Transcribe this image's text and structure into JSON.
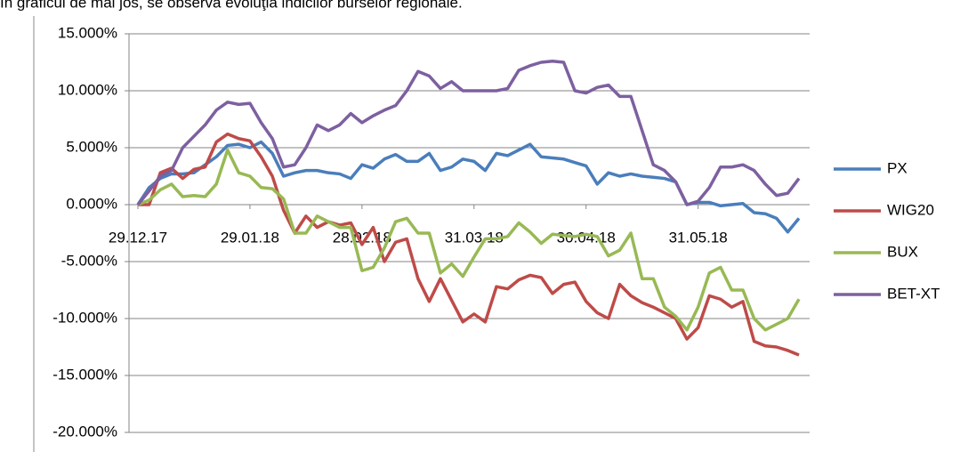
{
  "caption": "În graficul de mai jos, se observă evoluţia indicilor burselor regionale.",
  "chart_data": {
    "type": "line",
    "categories": [
      "29.12.17",
      null,
      null,
      null,
      null,
      null,
      null,
      null,
      null,
      null,
      "29.01.18",
      null,
      null,
      null,
      null,
      null,
      null,
      null,
      null,
      null,
      "28.02.18",
      null,
      null,
      null,
      null,
      null,
      null,
      null,
      null,
      null,
      "31.03.18",
      null,
      null,
      null,
      null,
      null,
      null,
      null,
      null,
      null,
      "30.04.18",
      null,
      null,
      null,
      null,
      null,
      null,
      null,
      null,
      null,
      "31.05.18",
      null,
      null,
      null,
      null,
      null,
      null,
      null,
      null,
      null
    ],
    "series": [
      {
        "name": "PX",
        "color": "#4a7ebb",
        "values": [
          0,
          1.5,
          2.3,
          2.7,
          2.7,
          2.8,
          3.5,
          4.2,
          5.2,
          5.3,
          5.0,
          5.5,
          4.5,
          2.5,
          2.8,
          3.0,
          3.0,
          2.8,
          2.7,
          2.3,
          3.5,
          3.2,
          4.0,
          4.4,
          3.8,
          3.8,
          4.5,
          3.0,
          3.3,
          4.0,
          3.8,
          3.0,
          4.5,
          4.3,
          4.8,
          5.3,
          4.2,
          4.1,
          4.0,
          3.7,
          3.4,
          1.8,
          2.8,
          2.5,
          2.7,
          2.5,
          2.4,
          2.3,
          2.0,
          0.0,
          0.2,
          0.2,
          -0.1,
          0.0,
          0.1,
          -0.7,
          -0.8,
          -1.2,
          -2.4,
          -1.2
        ]
      },
      {
        "name": "WIG20",
        "color": "#be4b48",
        "values": [
          0,
          0.0,
          2.8,
          3.2,
          2.3,
          3.1,
          3.3,
          5.5,
          6.2,
          5.8,
          5.6,
          4.2,
          2.5,
          -0.5,
          -2.5,
          -1.0,
          -2.0,
          -1.5,
          -1.8,
          -1.6,
          -3.5,
          -2.0,
          -5.0,
          -3.3,
          -3.0,
          -6.5,
          -8.5,
          -6.5,
          -8.4,
          -10.3,
          -9.6,
          -10.3,
          -7.2,
          -7.4,
          -6.6,
          -6.2,
          -6.4,
          -7.8,
          -7.0,
          -6.8,
          -8.5,
          -9.5,
          -10.0,
          -7.0,
          -8.0,
          -8.6,
          -9.0,
          -9.5,
          -10.0,
          -11.8,
          -10.8,
          -8.0,
          -8.3,
          -9.0,
          -8.5,
          -12.0,
          -12.4,
          -12.5,
          -12.8,
          -13.2
        ]
      },
      {
        "name": "BUX",
        "color": "#98b954",
        "values": [
          0,
          0.4,
          1.3,
          1.8,
          0.7,
          0.8,
          0.7,
          1.8,
          4.8,
          2.8,
          2.5,
          1.5,
          1.4,
          0.5,
          -2.5,
          -2.5,
          -1.0,
          -1.5,
          -2.0,
          -2.0,
          -5.8,
          -5.5,
          -3.8,
          -1.5,
          -1.2,
          -2.5,
          -2.5,
          -6.0,
          -5.2,
          -6.3,
          -4.6,
          -3.0,
          -3.0,
          -2.8,
          -1.6,
          -2.4,
          -3.4,
          -2.6,
          -2.7,
          -2.8,
          -2.6,
          -2.8,
          -4.5,
          -4.0,
          -2.5,
          -6.5,
          -6.5,
          -9.0,
          -9.8,
          -11.0,
          -9.0,
          -6.0,
          -5.5,
          -7.5,
          -7.5,
          -10.0,
          -11.0,
          -10.5,
          -10.0,
          -8.3
        ]
      },
      {
        "name": "BET-XT",
        "color": "#7d60a0",
        "values": [
          0,
          1.2,
          2.5,
          3.0,
          5.0,
          6.0,
          7.0,
          8.3,
          9.0,
          8.8,
          8.9,
          7.2,
          5.8,
          3.3,
          3.5,
          5.0,
          7.0,
          6.5,
          7.0,
          8.0,
          7.2,
          7.8,
          8.3,
          8.7,
          10.0,
          11.7,
          11.3,
          10.2,
          10.8,
          10.0,
          10.0,
          10.0,
          10.0,
          10.2,
          11.8,
          12.2,
          12.5,
          12.6,
          12.5,
          10.0,
          9.8,
          10.3,
          10.5,
          9.5,
          9.5,
          6.5,
          3.5,
          3.0,
          2.0,
          0.0,
          0.3,
          1.5,
          3.3,
          3.3,
          3.5,
          3.0,
          1.8,
          0.8,
          1.0,
          2.3
        ]
      }
    ],
    "ylim": [
      -20,
      15
    ],
    "yticks": [
      {
        "value": -20,
        "label": "-20.000%"
      },
      {
        "value": -15,
        "label": "-15.000%"
      },
      {
        "value": -10,
        "label": "-10.000%"
      },
      {
        "value": -5,
        "label": "-5.000%"
      },
      {
        "value": 0,
        "label": "0.000%"
      },
      {
        "value": 5,
        "label": "5.000%"
      },
      {
        "value": 10,
        "label": "10.000%"
      },
      {
        "value": 15,
        "label": "15.000%"
      }
    ],
    "grid": true,
    "legend": "right"
  }
}
